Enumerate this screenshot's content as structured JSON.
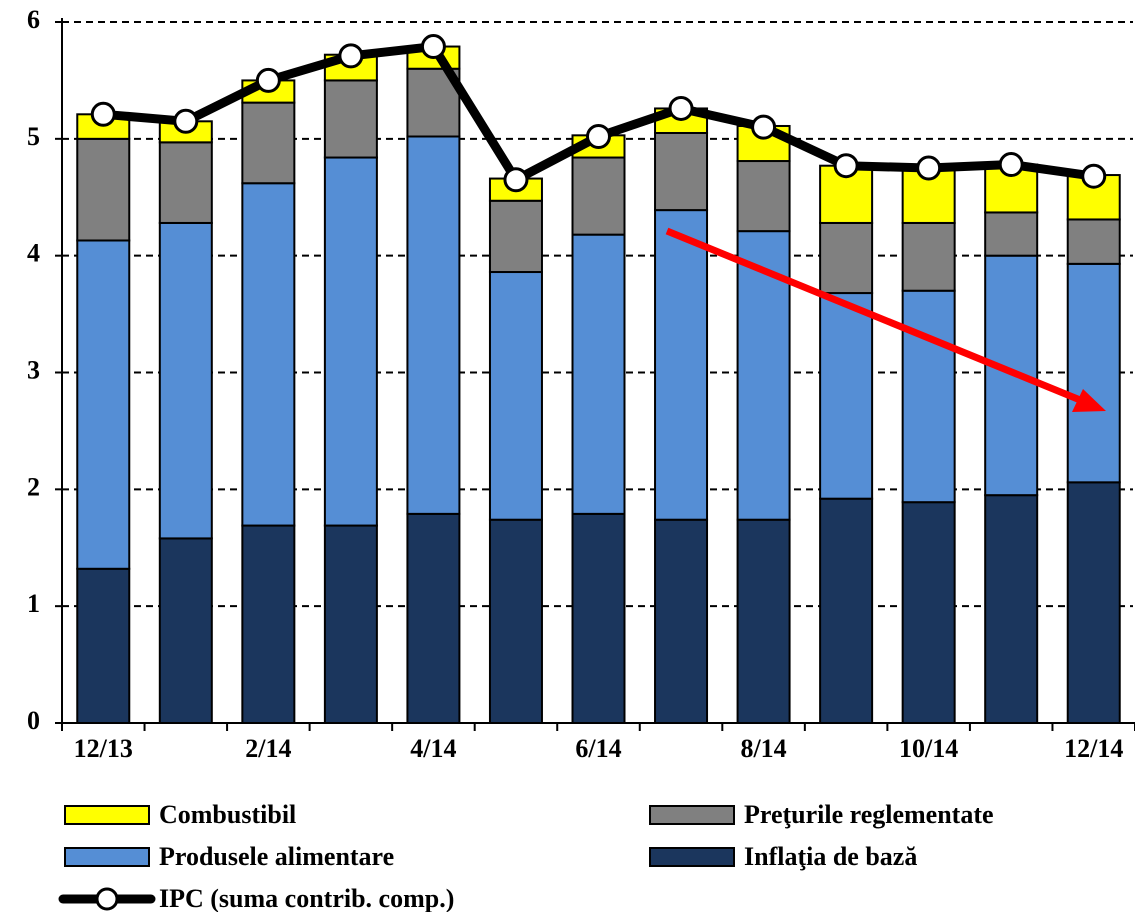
{
  "chart_data": {
    "type": "bar",
    "stacked": true,
    "categories": [
      "12/13",
      null,
      "2/14",
      null,
      "4/14",
      null,
      "6/14",
      null,
      "8/14",
      null,
      "10/14",
      null,
      "12/14"
    ],
    "series": [
      {
        "name": "Inflaţia de bază",
        "color": "#1b365d",
        "values": [
          1.32,
          1.58,
          1.69,
          1.69,
          1.79,
          1.74,
          1.79,
          1.74,
          1.74,
          1.92,
          1.89,
          1.95,
          2.06
        ]
      },
      {
        "name": "Produsele alimentare",
        "color": "#558ed5",
        "values": [
          2.81,
          2.7,
          2.93,
          3.15,
          3.23,
          2.12,
          2.39,
          2.65,
          2.47,
          1.76,
          1.81,
          2.05,
          1.87
        ]
      },
      {
        "name": "Preţurile reglementate",
        "color": "#808080",
        "values": [
          0.87,
          0.69,
          0.69,
          0.66,
          0.58,
          0.61,
          0.66,
          0.66,
          0.6,
          0.6,
          0.58,
          0.37,
          0.38
        ]
      },
      {
        "name": "Combustibil",
        "color": "#ffff00",
        "values": [
          0.21,
          0.18,
          0.19,
          0.22,
          0.19,
          0.19,
          0.19,
          0.21,
          0.3,
          0.49,
          0.45,
          0.41,
          0.38
        ]
      },
      {
        "name": "IPC (suma contrib. comp.)",
        "type": "line",
        "color": "#000000",
        "values": [
          5.21,
          5.15,
          5.5,
          5.71,
          5.79,
          4.65,
          5.02,
          5.26,
          5.1,
          4.77,
          4.75,
          4.78,
          4.68
        ]
      }
    ],
    "ylim": [
      0,
      6
    ],
    "yticks": [
      0,
      1,
      2,
      3,
      4,
      5,
      6
    ],
    "grid": true
  }
}
